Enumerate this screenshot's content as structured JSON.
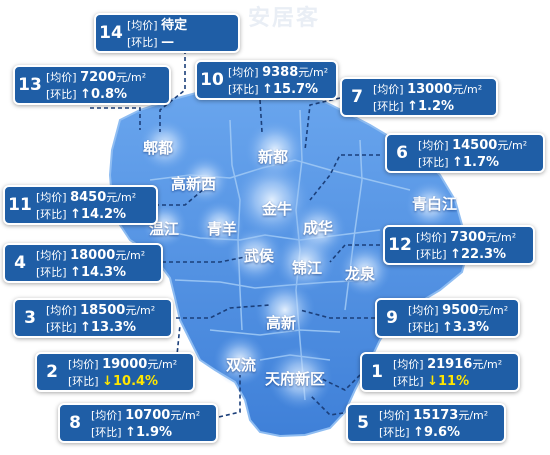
{
  "watermark": "安居客",
  "districts": {
    "pidu": "郫都",
    "xindu": "新都",
    "gaoxin_west": "高新西",
    "wenjiang": "温江",
    "qingyang": "青羊",
    "jinniu": "金牛",
    "chenghua": "成华",
    "qingbaijiang": "青白江",
    "wuhou": "武侯",
    "jinjiang": "锦江",
    "longquan": "龙泉",
    "gaoxin": "高新",
    "shuangliu": "双流",
    "tianfu": "天府新区"
  },
  "labels": {
    "avg": "[均价]",
    "mom": "[环比]",
    "unit": "元/m²"
  },
  "cards": [
    {
      "rank": "14",
      "price": "待定",
      "change": "—",
      "dir": "flat"
    },
    {
      "rank": "13",
      "price": "7200",
      "change": "↑0.8%",
      "dir": "up"
    },
    {
      "rank": "10",
      "price": "9388",
      "change": "↑15.7%",
      "dir": "up"
    },
    {
      "rank": "7",
      "price": "13000",
      "change": "↑1.2%",
      "dir": "up"
    },
    {
      "rank": "6",
      "price": "14500",
      "change": "↑1.7%",
      "dir": "up"
    },
    {
      "rank": "11",
      "price": "8450",
      "change": "↑14.2%",
      "dir": "up"
    },
    {
      "rank": "4",
      "price": "18000",
      "change": "↑14.3%",
      "dir": "up"
    },
    {
      "rank": "12",
      "price": "7300",
      "change": "↑22.3%",
      "dir": "up"
    },
    {
      "rank": "3",
      "price": "18500",
      "change": "↑13.3%",
      "dir": "up"
    },
    {
      "rank": "9",
      "price": "9500",
      "change": "↑3.3%",
      "dir": "up"
    },
    {
      "rank": "2",
      "price": "19000",
      "change": "↓10.4%",
      "dir": "down"
    },
    {
      "rank": "1",
      "price": "21916",
      "change": "↓11%",
      "dir": "down"
    },
    {
      "rank": "8",
      "price": "10700",
      "change": "↑1.9%",
      "dir": "up"
    },
    {
      "rank": "5",
      "price": "15173",
      "change": "↑9.6%",
      "dir": "up"
    }
  ],
  "colors": {
    "map_fill": "#4f8fe0",
    "map_light": "#cfe3fb",
    "card_bg": "#1f5ea6",
    "card_border": "#ffffff",
    "text": "#ffffff",
    "decline": "#ffe600",
    "leader_line": "#1b3f7a"
  }
}
